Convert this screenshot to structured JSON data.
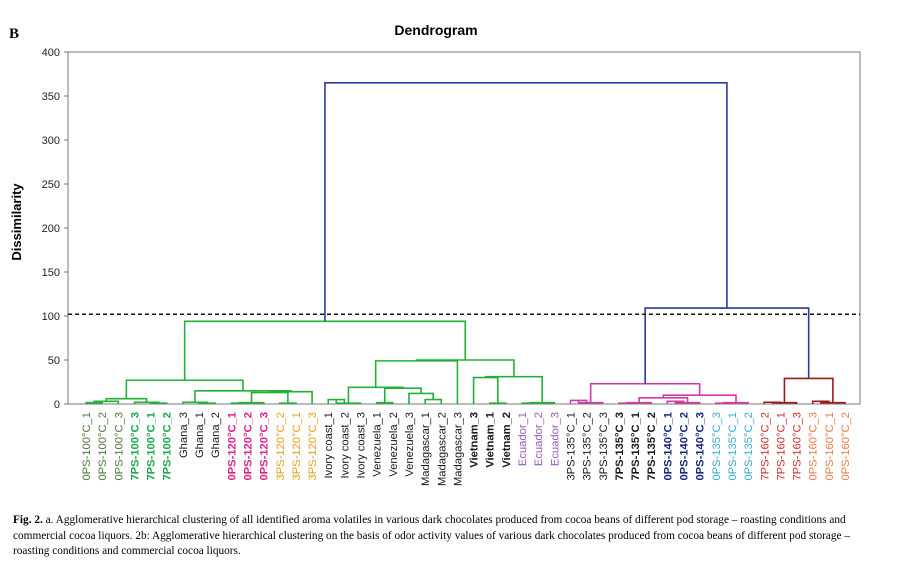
{
  "panel_label": "B",
  "caption": {
    "label": "Fig. 2.",
    "text": "a. Agglomerative hierarchical clustering of all identified aroma volatiles in various dark chocolates produced from cocoa beans of different pod storage – roasting conditions and commercial cocoa liquors. 2b: Agglomerative hierarchical clustering on the basis of odor activity values of various dark chocolates produced from cocoa beans of different pod storage – roasting conditions and commercial cocoa liquors."
  },
  "chart_data": {
    "type": "dendrogram",
    "title": "Dendrogram",
    "ylabel": "Dissimilarity",
    "xlabel": "",
    "ylim": [
      0,
      400
    ],
    "yticks": [
      0,
      50,
      100,
      150,
      200,
      250,
      300,
      350,
      400
    ],
    "truncation_line": 102,
    "colors": {
      "green": "#22b23a",
      "blue": "#2a3a9a",
      "magenta": "#d13aa8",
      "darkred": "#a01818",
      "dark_green_text": "#4a7a3a",
      "bright_green_text": "#1ea84a",
      "pink_text": "#e0208a",
      "orange_text": "#e4a020",
      "purple_text": "#9a5ab8",
      "navy_text": "#1a2a7a",
      "cyan_text": "#3aa8d0",
      "red_text": "#d02a2a",
      "salmon_text": "#ea7a4a",
      "black_text": "#1a1a1a"
    },
    "leaves": [
      {
        "label": "0PS-100°C_1",
        "color": "#4a7a3a",
        "bold": false
      },
      {
        "label": "0PS-100°C_2",
        "color": "#4a7a3a",
        "bold": false
      },
      {
        "label": "0PS-100°C_3",
        "color": "#4a7a3a",
        "bold": false
      },
      {
        "label": "7PS-100°C_3",
        "color": "#1ea84a",
        "bold": true
      },
      {
        "label": "7PS-100°C_1",
        "color": "#1ea84a",
        "bold": true
      },
      {
        "label": "7PS-100°C_2",
        "color": "#1ea84a",
        "bold": true
      },
      {
        "label": "Ghana_3",
        "color": "#1a1a1a",
        "bold": false
      },
      {
        "label": "Ghana_1",
        "color": "#1a1a1a",
        "bold": false
      },
      {
        "label": "Ghana_2",
        "color": "#1a1a1a",
        "bold": false
      },
      {
        "label": "0PS-120°C_1",
        "color": "#e0208a",
        "bold": true
      },
      {
        "label": "0PS-120°C_2",
        "color": "#e0208a",
        "bold": true
      },
      {
        "label": "0PS-120°C_3",
        "color": "#e0208a",
        "bold": true
      },
      {
        "label": "3PS-120°C_2",
        "color": "#e4a020",
        "bold": false
      },
      {
        "label": "3PS-120°C_1",
        "color": "#e4a020",
        "bold": false
      },
      {
        "label": "3PS-120°C_3",
        "color": "#e4a020",
        "bold": false
      },
      {
        "label": "Ivory coast_1",
        "color": "#1a1a1a",
        "bold": false
      },
      {
        "label": "Ivory coast_2",
        "color": "#1a1a1a",
        "bold": false
      },
      {
        "label": "Ivory coast_3",
        "color": "#1a1a1a",
        "bold": false
      },
      {
        "label": "Venezuela_1",
        "color": "#1a1a1a",
        "bold": false
      },
      {
        "label": "Venezuela_2",
        "color": "#1a1a1a",
        "bold": false
      },
      {
        "label": "Venezuela_3",
        "color": "#1a1a1a",
        "bold": false
      },
      {
        "label": "Madagascar_1",
        "color": "#1a1a1a",
        "bold": false
      },
      {
        "label": "Madagascar_2",
        "color": "#1a1a1a",
        "bold": false
      },
      {
        "label": "Madagascar_3",
        "color": "#1a1a1a",
        "bold": false
      },
      {
        "label": "Vietnam_3",
        "color": "#1a1a1a",
        "bold": true
      },
      {
        "label": "Vietnam_1",
        "color": "#1a1a1a",
        "bold": true
      },
      {
        "label": "Vietnam_2",
        "color": "#1a1a1a",
        "bold": true
      },
      {
        "label": "Ecuador_1",
        "color": "#9a5ab8",
        "bold": false
      },
      {
        "label": "Ecuador_2",
        "color": "#9a5ab8",
        "bold": false
      },
      {
        "label": "Ecuador_3",
        "color": "#9a5ab8",
        "bold": false
      },
      {
        "label": "3PS-135°C_1",
        "color": "#1a1a1a",
        "bold": false
      },
      {
        "label": "3PS-135°C_2",
        "color": "#1a1a1a",
        "bold": false
      },
      {
        "label": "3PS-135°C_3",
        "color": "#1a1a1a",
        "bold": false
      },
      {
        "label": "7PS-135°C_3",
        "color": "#1a1a1a",
        "bold": true
      },
      {
        "label": "7PS-135°C_1",
        "color": "#1a1a1a",
        "bold": true
      },
      {
        "label": "7PS-135°C_2",
        "color": "#1a1a1a",
        "bold": true
      },
      {
        "label": "0PS-140°C_1",
        "color": "#1a2a7a",
        "bold": true
      },
      {
        "label": "0PS-140°C_2",
        "color": "#1a2a7a",
        "bold": true
      },
      {
        "label": "0PS-140°C_3",
        "color": "#1a2a7a",
        "bold": true
      },
      {
        "label": "0PS-135°C_3",
        "color": "#3aa8d0",
        "bold": false
      },
      {
        "label": "0PS-135°C_1",
        "color": "#3aa8d0",
        "bold": false
      },
      {
        "label": "0PS-135°C_2",
        "color": "#3aa8d0",
        "bold": false
      },
      {
        "label": "7PS-160°C_2",
        "color": "#d02a2a",
        "bold": false
      },
      {
        "label": "7PS-160°C_1",
        "color": "#d02a2a",
        "bold": false
      },
      {
        "label": "7PS-160°C_3",
        "color": "#d02a2a",
        "bold": false
      },
      {
        "label": "0PS-160°C_3",
        "color": "#ea7a4a",
        "bold": false
      },
      {
        "label": "0PS-160°C_1",
        "color": "#ea7a4a",
        "bold": false
      },
      {
        "label": "0PS-160°C_2",
        "color": "#ea7a4a",
        "bold": false
      }
    ],
    "links": [
      {
        "left": 0,
        "right": 1,
        "height": 1.5,
        "color": "green"
      },
      {
        "left": 100,
        "right": 2,
        "height": 3.0,
        "color": "green"
      },
      {
        "left": 4,
        "right": 5,
        "height": 1.0,
        "color": "green"
      },
      {
        "left": 3,
        "right": 102,
        "height": 2.0,
        "color": "green"
      },
      {
        "left": 101,
        "right": 103,
        "height": 6.0,
        "color": "green"
      },
      {
        "left": 7,
        "right": 8,
        "height": 1.0,
        "color": "green"
      },
      {
        "left": 6,
        "right": 105,
        "height": 2.0,
        "color": "green"
      },
      {
        "left": 9,
        "right": 10,
        "height": 1.0,
        "color": "green"
      },
      {
        "left": 107,
        "right": 11,
        "height": 1.5,
        "color": "green"
      },
      {
        "left": 12,
        "right": 13,
        "height": 1.0,
        "color": "green"
      },
      {
        "left": 108,
        "right": 109,
        "height": 13.0,
        "color": "green"
      },
      {
        "left": 14,
        "right": 110,
        "height": 14.0,
        "color": "green"
      },
      {
        "left": 106,
        "right": 111,
        "height": 15.0,
        "color": "green"
      },
      {
        "left": 104,
        "right": 112,
        "height": 27.0,
        "color": "green"
      },
      {
        "left": 15,
        "right": 16,
        "height": 5.0,
        "color": "green"
      },
      {
        "left": 114,
        "right": 17,
        "height": 1.0,
        "color": "green"
      },
      {
        "left": 18,
        "right": 19,
        "height": 1.5,
        "color": "green"
      },
      {
        "left": 21,
        "right": 22,
        "height": 5.0,
        "color": "green"
      },
      {
        "left": 20,
        "right": 117,
        "height": 12.0,
        "color": "green"
      },
      {
        "left": 116,
        "right": 118,
        "height": 18.0,
        "color": "green"
      },
      {
        "left": 115,
        "right": 119,
        "height": 19.0,
        "color": "green"
      },
      {
        "left": 23,
        "right": 120,
        "height": 49.0,
        "color": "green"
      },
      {
        "left": 25,
        "right": 26,
        "height": 1.0,
        "color": "green"
      },
      {
        "left": 24,
        "right": 122,
        "height": 30.0,
        "color": "green"
      },
      {
        "left": 27,
        "right": 28,
        "height": 1.0,
        "color": "green"
      },
      {
        "left": 124,
        "right": 29,
        "height": 1.5,
        "color": "green"
      },
      {
        "left": 123,
        "right": 125,
        "height": 31.0,
        "color": "green"
      },
      {
        "left": 121,
        "right": 126,
        "height": 50.0,
        "color": "green"
      },
      {
        "left": 113,
        "right": 127,
        "height": 94.0,
        "color": "green"
      },
      {
        "left": 30,
        "right": 31,
        "height": 4.0,
        "color": "magenta"
      },
      {
        "left": 129,
        "right": 32,
        "height": 1.5,
        "color": "magenta"
      },
      {
        "left": 33,
        "right": 34,
        "height": 1.0,
        "color": "magenta"
      },
      {
        "left": 131,
        "right": 35,
        "height": 1.5,
        "color": "magenta"
      },
      {
        "left": 36,
        "right": 37,
        "height": 3.0,
        "color": "magenta"
      },
      {
        "left": 133,
        "right": 38,
        "height": 1.5,
        "color": "magenta"
      },
      {
        "left": 132,
        "right": 134,
        "height": 7.0,
        "color": "magenta"
      },
      {
        "left": 39,
        "right": 40,
        "height": 1.0,
        "color": "magenta"
      },
      {
        "left": 136,
        "right": 41,
        "height": 1.5,
        "color": "magenta"
      },
      {
        "left": 135,
        "right": 137,
        "height": 10.0,
        "color": "magenta"
      },
      {
        "left": 130,
        "right": 138,
        "height": 23.0,
        "color": "magenta"
      },
      {
        "left": 42,
        "right": 43,
        "height": 2.0,
        "color": "darkred"
      },
      {
        "left": 140,
        "right": 44,
        "height": 1.5,
        "color": "darkred"
      },
      {
        "left": 45,
        "right": 46,
        "height": 3.0,
        "color": "darkred"
      },
      {
        "left": 142,
        "right": 47,
        "height": 1.5,
        "color": "darkred"
      },
      {
        "left": 141,
        "right": 143,
        "height": 29.0,
        "color": "darkred"
      },
      {
        "left": 139,
        "right": 144,
        "height": 109.0,
        "color": "blue"
      },
      {
        "left": 128,
        "right": 145,
        "height": 365.0,
        "color": "blue"
      }
    ]
  }
}
